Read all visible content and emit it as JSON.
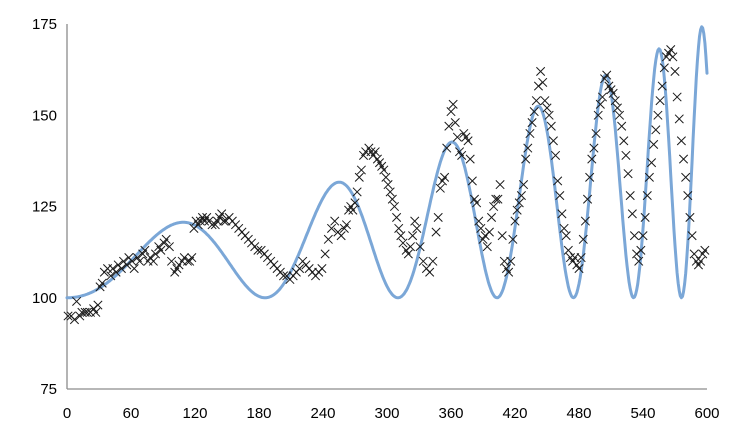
{
  "chart_data": {
    "type": "scatter",
    "title": "",
    "xlabel": "",
    "ylabel": "",
    "xlim": [
      0,
      600
    ],
    "ylim": [
      75,
      175
    ],
    "x_ticks": [
      "0",
      "60",
      "120",
      "180",
      "240",
      "300",
      "360",
      "420",
      "480",
      "540",
      "600"
    ],
    "y_ticks": [
      "75",
      "100",
      "125",
      "150",
      "175"
    ],
    "grid": false,
    "legend": "none",
    "colors": {
      "observed": "#1a1a1a",
      "model": "#7BA7D7",
      "axis": "#8c8c8c"
    },
    "series": [
      {
        "marker": "x",
        "points": [
          [
            1,
            95
          ],
          [
            4,
            95
          ],
          [
            7,
            94
          ],
          [
            9,
            99
          ],
          [
            12,
            95
          ],
          [
            14,
            96
          ],
          [
            17,
            96
          ],
          [
            19,
            96
          ],
          [
            22,
            96
          ],
          [
            25,
            97
          ],
          [
            27,
            96
          ],
          [
            29,
            98
          ],
          [
            31,
            103
          ],
          [
            33,
            104
          ],
          [
            35,
            107
          ],
          [
            38,
            108
          ],
          [
            41,
            106
          ],
          [
            43,
            108
          ],
          [
            46,
            107
          ],
          [
            48,
            109
          ],
          [
            51,
            108
          ],
          [
            53,
            110
          ],
          [
            56,
            109
          ],
          [
            58,
            111
          ],
          [
            61,
            110
          ],
          [
            63,
            108
          ],
          [
            66,
            111
          ],
          [
            68,
            110
          ],
          [
            71,
            112
          ],
          [
            73,
            113
          ],
          [
            76,
            110
          ],
          [
            78,
            111
          ],
          [
            81,
            110
          ],
          [
            83,
            112
          ],
          [
            86,
            114
          ],
          [
            88,
            113
          ],
          [
            91,
            115
          ],
          [
            93,
            116
          ],
          [
            96,
            114
          ],
          [
            98,
            110
          ],
          [
            101,
            107
          ],
          [
            103,
            108
          ],
          [
            105,
            109
          ],
          [
            108,
            110
          ],
          [
            110,
            111
          ],
          [
            113,
            110
          ],
          [
            115,
            110
          ],
          [
            117,
            111
          ],
          [
            119,
            119
          ],
          [
            121,
            121
          ],
          [
            123,
            120
          ],
          [
            125,
            121
          ],
          [
            127,
            122
          ],
          [
            129,
            121
          ],
          [
            131,
            122
          ],
          [
            133,
            121
          ],
          [
            136,
            120
          ],
          [
            139,
            120
          ],
          [
            141,
            121
          ],
          [
            143,
            122
          ],
          [
            145,
            123
          ],
          [
            147,
            121
          ],
          [
            149,
            121
          ],
          [
            152,
            122
          ],
          [
            155,
            121
          ],
          [
            158,
            120
          ],
          [
            161,
            119
          ],
          [
            164,
            118
          ],
          [
            167,
            117
          ],
          [
            170,
            116
          ],
          [
            173,
            115
          ],
          [
            176,
            114
          ],
          [
            179,
            113
          ],
          [
            182,
            113
          ],
          [
            185,
            112
          ],
          [
            188,
            111
          ],
          [
            191,
            110
          ],
          [
            194,
            109
          ],
          [
            197,
            108
          ],
          [
            200,
            107
          ],
          [
            203,
            106
          ],
          [
            206,
            106
          ],
          [
            209,
            105
          ],
          [
            212,
            106
          ],
          [
            215,
            107
          ],
          [
            218,
            108
          ],
          [
            221,
            110
          ],
          [
            224,
            109
          ],
          [
            227,
            108
          ],
          [
            230,
            107
          ],
          [
            233,
            106
          ],
          [
            236,
            107
          ],
          [
            239,
            108
          ],
          [
            242,
            112
          ],
          [
            245,
            116
          ],
          [
            248,
            119
          ],
          [
            251,
            121
          ],
          [
            254,
            118
          ],
          [
            257,
            117
          ],
          [
            260,
            119
          ],
          [
            262,
            120
          ],
          [
            264,
            124
          ],
          [
            266,
            125
          ],
          [
            268,
            124
          ],
          [
            270,
            126
          ],
          [
            272,
            129
          ],
          [
            274,
            133
          ],
          [
            276,
            135
          ],
          [
            278,
            139
          ],
          [
            280,
            140
          ],
          [
            283,
            141
          ],
          [
            285,
            140
          ],
          [
            287,
            139
          ],
          [
            289,
            140
          ],
          [
            291,
            138
          ],
          [
            293,
            137
          ],
          [
            295,
            136
          ],
          [
            297,
            135
          ],
          [
            299,
            133
          ],
          [
            301,
            131
          ],
          [
            303,
            129
          ],
          [
            305,
            127
          ],
          [
            307,
            125
          ],
          [
            309,
            122
          ],
          [
            311,
            119
          ],
          [
            313,
            117
          ],
          [
            315,
            115
          ],
          [
            318,
            113
          ],
          [
            320,
            112
          ],
          [
            322,
            114
          ],
          [
            324,
            117
          ],
          [
            326,
            121
          ],
          [
            328,
            119
          ],
          [
            331,
            114
          ],
          [
            334,
            110
          ],
          [
            337,
            108
          ],
          [
            340,
            107
          ],
          [
            343,
            110
          ],
          [
            346,
            118
          ],
          [
            348,
            122
          ],
          [
            350,
            130
          ],
          [
            352,
            132
          ],
          [
            354,
            133
          ],
          [
            356,
            141
          ],
          [
            358,
            147
          ],
          [
            360,
            151
          ],
          [
            362,
            153
          ],
          [
            364,
            148
          ],
          [
            366,
            144
          ],
          [
            368,
            140
          ],
          [
            370,
            139
          ],
          [
            372,
            145
          ],
          [
            374,
            144
          ],
          [
            376,
            143
          ],
          [
            378,
            138
          ],
          [
            380,
            132
          ],
          [
            382,
            127
          ],
          [
            384,
            126
          ],
          [
            386,
            121
          ],
          [
            388,
            119
          ],
          [
            390,
            116
          ],
          [
            392,
            117
          ],
          [
            394,
            114
          ],
          [
            396,
            118
          ],
          [
            398,
            122
          ],
          [
            400,
            125
          ],
          [
            402,
            127
          ],
          [
            404,
            127
          ],
          [
            406,
            131
          ],
          [
            408,
            117
          ],
          [
            410,
            110
          ],
          [
            412,
            108
          ],
          [
            414,
            107
          ],
          [
            416,
            110
          ],
          [
            418,
            116
          ],
          [
            420,
            121
          ],
          [
            422,
            124
          ],
          [
            424,
            126
          ],
          [
            426,
            128
          ],
          [
            428,
            131
          ],
          [
            430,
            138
          ],
          [
            432,
            141
          ],
          [
            434,
            145
          ],
          [
            436,
            148
          ],
          [
            438,
            151
          ],
          [
            440,
            154
          ],
          [
            442,
            158
          ],
          [
            444,
            162
          ],
          [
            446,
            159
          ],
          [
            448,
            154
          ],
          [
            450,
            152
          ],
          [
            452,
            150
          ],
          [
            454,
            147
          ],
          [
            456,
            143
          ],
          [
            458,
            139
          ],
          [
            460,
            132
          ],
          [
            462,
            128
          ],
          [
            464,
            123
          ],
          [
            466,
            119
          ],
          [
            468,
            117
          ],
          [
            470,
            113
          ],
          [
            472,
            111
          ],
          [
            474,
            110
          ],
          [
            476,
            111
          ],
          [
            478,
            109
          ],
          [
            480,
            108
          ],
          [
            482,
            111
          ],
          [
            484,
            116
          ],
          [
            486,
            121
          ],
          [
            488,
            127
          ],
          [
            490,
            133
          ],
          [
            492,
            138
          ],
          [
            494,
            141
          ],
          [
            496,
            145
          ],
          [
            498,
            150
          ],
          [
            500,
            153
          ],
          [
            502,
            155
          ],
          [
            504,
            160
          ],
          [
            506,
            161
          ],
          [
            508,
            158
          ],
          [
            510,
            157
          ],
          [
            512,
            156
          ],
          [
            514,
            154
          ],
          [
            516,
            152
          ],
          [
            518,
            150
          ],
          [
            520,
            147
          ],
          [
            522,
            143
          ],
          [
            524,
            139
          ],
          [
            526,
            134
          ],
          [
            528,
            128
          ],
          [
            530,
            123
          ],
          [
            532,
            117
          ],
          [
            534,
            112
          ],
          [
            536,
            110
          ],
          [
            538,
            113
          ],
          [
            540,
            117
          ],
          [
            542,
            122
          ],
          [
            544,
            128
          ],
          [
            546,
            133
          ],
          [
            548,
            137
          ],
          [
            550,
            142
          ],
          [
            552,
            146
          ],
          [
            554,
            150
          ],
          [
            556,
            154
          ],
          [
            558,
            158
          ],
          [
            560,
            163
          ],
          [
            562,
            166
          ],
          [
            564,
            167
          ],
          [
            566,
            168
          ],
          [
            568,
            166
          ],
          [
            570,
            162
          ],
          [
            572,
            155
          ],
          [
            574,
            149
          ],
          [
            576,
            143
          ],
          [
            578,
            138
          ],
          [
            580,
            133
          ],
          [
            582,
            128
          ],
          [
            584,
            122
          ],
          [
            586,
            117
          ],
          [
            588,
            112
          ],
          [
            590,
            110
          ],
          [
            592,
            109
          ],
          [
            594,
            110
          ],
          [
            596,
            112
          ],
          [
            598,
            113
          ]
        ]
      },
      {
        "marker": "line",
        "model": {
          "base": 100,
          "start": 0,
          "end": 600
        }
      }
    ]
  }
}
